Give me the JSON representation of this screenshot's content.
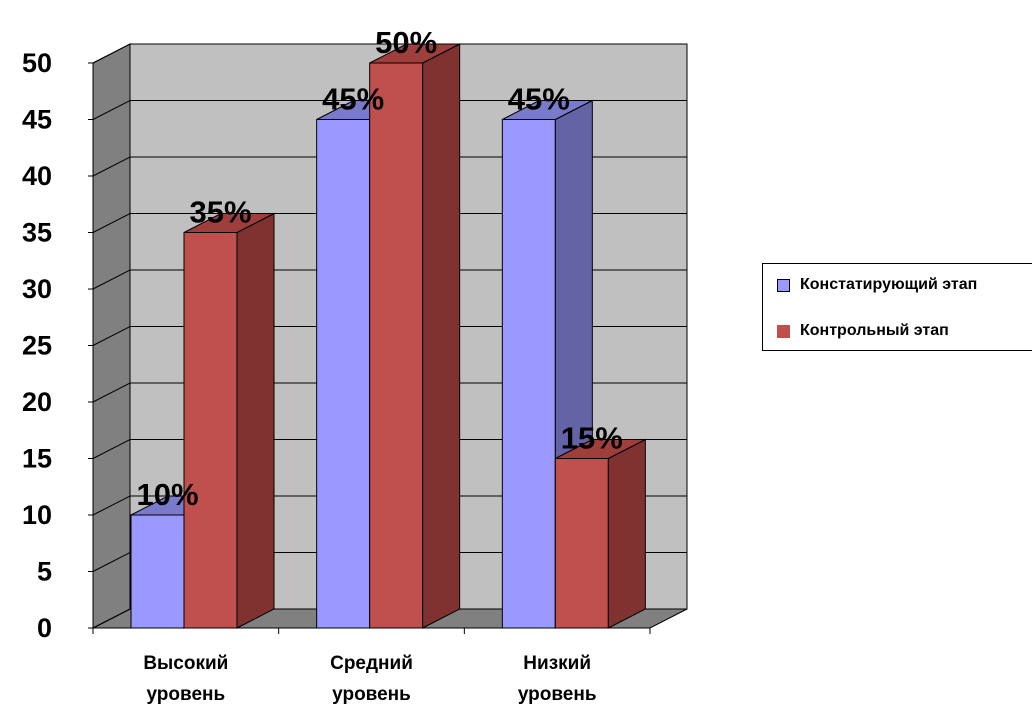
{
  "chart_data": {
    "type": "bar",
    "categories": [
      "Высокий уровень",
      "Средний уровень",
      "Низкий уровень"
    ],
    "category_lines": [
      [
        "Высокий",
        "уровень"
      ],
      [
        "Средний",
        "уровень"
      ],
      [
        "Низкий",
        "уровень"
      ]
    ],
    "series": [
      {
        "name": "Констатирующий этап",
        "values": [
          10,
          45,
          45
        ],
        "labels": [
          "10%",
          "45%",
          "45%"
        ],
        "color": "#9999ff",
        "side_color": "#6363a5",
        "top_color": "#7a7acc"
      },
      {
        "name": "Контрольный этап",
        "values": [
          35,
          50,
          15
        ],
        "labels": [
          "35%",
          "50%",
          "15%"
        ],
        "color": "#c0504d",
        "side_color": "#7f3230",
        "top_color": "#9e3f3c"
      }
    ],
    "yticks": [
      0,
      5,
      10,
      15,
      20,
      25,
      30,
      35,
      40,
      45,
      50
    ],
    "ylim": [
      0,
      50
    ],
    "grid": true,
    "legend_position": "right",
    "wall_color": "#c0c0c0",
    "side_wall_color": "#808080",
    "floor_color": "#808080"
  }
}
